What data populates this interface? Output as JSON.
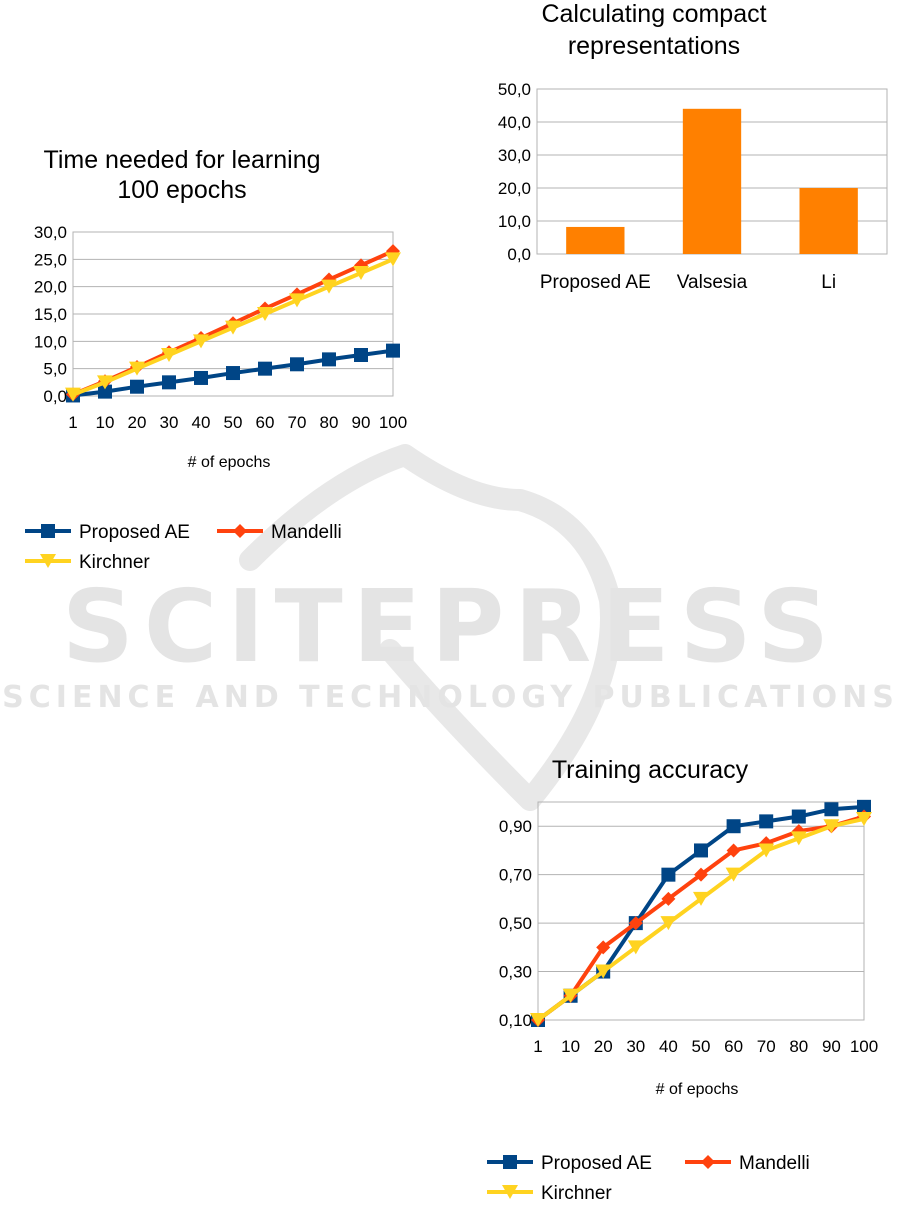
{
  "watermark": {
    "title": "SCITEPRESS",
    "subtitle": "SCIENCE AND TECHNOLOGY PUBLICATIONS"
  },
  "chart_data": [
    {
      "type": "line",
      "title": "Time needed for learning 100 epochs",
      "title_lines": [
        "Time needed for learning",
        "100 epochs"
      ],
      "xlabel": "# of epochs",
      "ylabel": "",
      "categories": [
        "1",
        "10",
        "20",
        "30",
        "40",
        "50",
        "60",
        "70",
        "80",
        "90",
        "100"
      ],
      "ylim": [
        0,
        30
      ],
      "yticks": [
        "0,0",
        "5,0",
        "10,0",
        "15,0",
        "20,0",
        "25,0",
        "30,0"
      ],
      "grid": true,
      "legend": "bottom",
      "series": [
        {
          "name": "Proposed AE",
          "color": "#004586",
          "marker": "square",
          "values": [
            0.1,
            0.8,
            1.7,
            2.5,
            3.3,
            4.2,
            5.0,
            5.8,
            6.7,
            7.5,
            8.3
          ]
        },
        {
          "name": "Mandelli",
          "color": "#ff420e",
          "marker": "diamond",
          "values": [
            0.3,
            2.7,
            5.3,
            8.0,
            10.6,
            13.3,
            16.0,
            18.6,
            21.3,
            23.9,
            26.5
          ]
        },
        {
          "name": "Kirchner",
          "color": "#ffd320",
          "marker": "triangle-down",
          "values": [
            0.25,
            2.5,
            5.0,
            7.5,
            10.0,
            12.5,
            15.0,
            17.5,
            20.0,
            22.5,
            25.0
          ]
        }
      ]
    },
    {
      "type": "bar",
      "title": "Calculating compact representations",
      "title_lines": [
        "Calculating compact",
        "representations"
      ],
      "xlabel": "",
      "ylabel": "",
      "categories": [
        "Proposed AE",
        "Valsesia",
        "Li"
      ],
      "values": [
        8.2,
        44.0,
        20.0
      ],
      "ylim": [
        0,
        50
      ],
      "yticks": [
        "0,0",
        "10,0",
        "20,0",
        "30,0",
        "40,0",
        "50,0"
      ],
      "grid": true,
      "color": "#ff8000"
    },
    {
      "type": "line",
      "title": "Training accuracy",
      "title_lines": [
        "Training accuracy"
      ],
      "xlabel": "# of epochs",
      "ylabel": "",
      "categories": [
        "1",
        "10",
        "20",
        "30",
        "40",
        "50",
        "60",
        "70",
        "80",
        "90",
        "100"
      ],
      "ylim": [
        0.1,
        1.0
      ],
      "yticks": [
        "0,10",
        "0,30",
        "0,50",
        "0,70",
        "0,90"
      ],
      "grid": true,
      "legend": "bottom",
      "series": [
        {
          "name": "Proposed AE",
          "color": "#004586",
          "marker": "square",
          "values": [
            0.1,
            0.2,
            0.3,
            0.5,
            0.7,
            0.8,
            0.9,
            0.92,
            0.94,
            0.97,
            0.98
          ]
        },
        {
          "name": "Mandelli",
          "color": "#ff420e",
          "marker": "diamond",
          "values": [
            0.1,
            0.2,
            0.4,
            0.5,
            0.6,
            0.7,
            0.8,
            0.83,
            0.88,
            0.9,
            0.94
          ]
        },
        {
          "name": "Kirchner",
          "color": "#ffd320",
          "marker": "triangle-down",
          "values": [
            0.1,
            0.2,
            0.3,
            0.4,
            0.5,
            0.6,
            0.7,
            0.8,
            0.85,
            0.9,
            0.93
          ]
        }
      ]
    }
  ]
}
